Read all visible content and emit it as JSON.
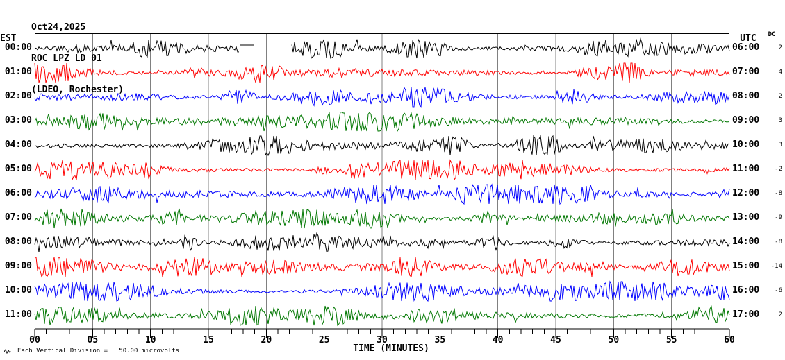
{
  "header": {
    "date": "Oct24,2025",
    "station": "ROC LPZ LD 01",
    "location": "(LDEO, Rochester)"
  },
  "left_axis": {
    "header": "EST"
  },
  "right_axis": {
    "header": "UTC"
  },
  "dc_column": {
    "header": "DC"
  },
  "x_axis": {
    "ticks": [
      "00",
      "05",
      "10",
      "15",
      "20",
      "25",
      "30",
      "35",
      "40",
      "45",
      "50",
      "55",
      "60"
    ],
    "label": "TIME (MINUTES)"
  },
  "footer": {
    "scale_note": "Each Vertical Division =   50.00 microvolts"
  },
  "colors": {
    "background": "#ffffff",
    "grid": "#808080",
    "axis": "#000000",
    "text": "#000000"
  },
  "chart_data": {
    "type": "line",
    "subtype": "helicorder-seismogram",
    "station": "ROC LPZ LD 01",
    "site": "(LDEO, Rochester)",
    "date": "Oct24,2025",
    "xlabel": "TIME (MINUTES)",
    "x_range_minutes": [
      0,
      60
    ],
    "major_tick_minutes": 5,
    "minor_tick_minutes": 1,
    "vertical_division_microvolts": 50.0,
    "trace_color_cycle": [
      "#000000",
      "#ff0000",
      "#0000ff",
      "#007700"
    ],
    "rows": [
      {
        "est": "00:00",
        "utc": "06:00",
        "dc": 2,
        "color": "#000000"
      },
      {
        "est": "01:00",
        "utc": "07:00",
        "dc": 4,
        "color": "#ff0000"
      },
      {
        "est": "02:00",
        "utc": "08:00",
        "dc": 2,
        "color": "#0000ff"
      },
      {
        "est": "03:00",
        "utc": "09:00",
        "dc": 3,
        "color": "#007700"
      },
      {
        "est": "04:00",
        "utc": "10:00",
        "dc": 3,
        "color": "#000000"
      },
      {
        "est": "05:00",
        "utc": "11:00",
        "dc": -2,
        "color": "#ff0000"
      },
      {
        "est": "06:00",
        "utc": "12:00",
        "dc": -8,
        "color": "#0000ff"
      },
      {
        "est": "07:00",
        "utc": "13:00",
        "dc": -9,
        "color": "#007700"
      },
      {
        "est": "08:00",
        "utc": "14:00",
        "dc": -8,
        "color": "#000000"
      },
      {
        "est": "09:00",
        "utc": "15:00",
        "dc": -14,
        "color": "#ff0000"
      },
      {
        "est": "10:00",
        "utc": "16:00",
        "dc": -6,
        "color": "#0000ff"
      },
      {
        "est": "11:00",
        "utc": "17:00",
        "dc": 2,
        "color": "#007700"
      }
    ],
    "data_gap": {
      "row_index": 0,
      "start_minute": 18.9,
      "end_minute": 22.2,
      "flat_line_before_gap_minutes": [
        17.7,
        18.9
      ]
    },
    "waveform_note": "continuous ambient seismic noise with intermittent amplitude bursts; individual samples not resolvable from image"
  }
}
